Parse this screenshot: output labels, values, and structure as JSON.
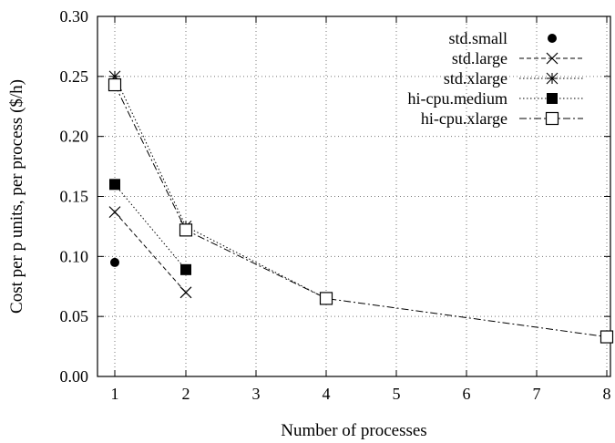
{
  "chart_data": {
    "type": "line",
    "xlabel": "Number of processes",
    "ylabel": "Cost per p units, per process ($/h)",
    "x_ticks": [
      1,
      2,
      3,
      4,
      5,
      6,
      7,
      8
    ],
    "x_tick_labels": [
      "1",
      "2",
      "3",
      "4",
      "5",
      "6",
      "7",
      "8"
    ],
    "y_ticks": [
      0.0,
      0.05,
      0.1,
      0.15,
      0.2,
      0.25,
      0.3
    ],
    "y_tick_labels": [
      "0.00",
      "0.05",
      "0.10",
      "0.15",
      "0.20",
      "0.25",
      "0.30"
    ],
    "xlim": [
      0.85,
      8.05
    ],
    "ylim": [
      0,
      0.3
    ],
    "grid": true,
    "legend_position": "top-right",
    "series": [
      {
        "name": "std.small",
        "x": [
          1
        ],
        "y": [
          0.095
        ],
        "marker": "filled-circle",
        "line_style": "none"
      },
      {
        "name": "std.large",
        "x": [
          1,
          2
        ],
        "y": [
          0.137,
          0.07
        ],
        "marker": "cross",
        "line_style": "dashed"
      },
      {
        "name": "std.xlarge",
        "x": [
          1,
          2,
          4
        ],
        "y": [
          0.25,
          0.125,
          0.065
        ],
        "marker": "asterisk",
        "line_style": "dotted"
      },
      {
        "name": "hi-cpu.medium",
        "x": [
          1,
          2
        ],
        "y": [
          0.16,
          0.089
        ],
        "marker": "filled-square",
        "line_style": "dotted"
      },
      {
        "name": "hi-cpu.xlarge",
        "x": [
          1,
          2,
          4,
          8
        ],
        "y": [
          0.243,
          0.122,
          0.065,
          0.033
        ],
        "marker": "open-square",
        "line_style": "dash-dot"
      }
    ]
  }
}
